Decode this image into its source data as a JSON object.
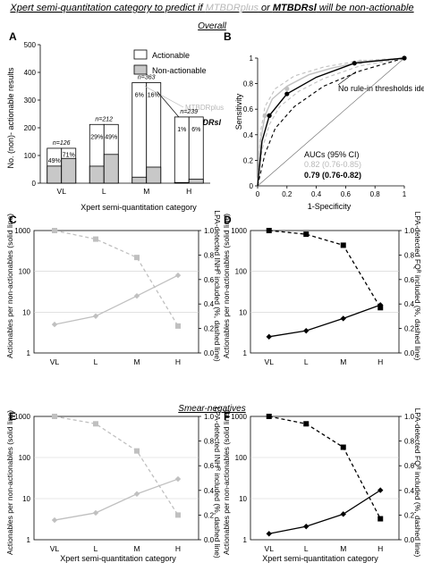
{
  "figure": {
    "title_parts": [
      "Xpert semi-quantitation category to predict if ",
      "MTBDRplus",
      " or ",
      "MTBDRsl",
      " will be non-actionable"
    ],
    "overall_label": "Overall",
    "smear_label": "Smear-negatives"
  },
  "colors": {
    "grey": "#c0c0c0",
    "black": "#000000",
    "bar_grey": "#c8c8c8"
  },
  "panelA": {
    "letter": "A",
    "ylabel": "No. (non)- actionable results",
    "xlabel": "Xpert semi-quantitation category",
    "legend": [
      "Actionable",
      "Non-actionable"
    ],
    "annot_plus": "MTBDRplus",
    "annot_sl": "MTBDRsl"
  },
  "panelB": {
    "letter": "B",
    "ylabel": "Sensitivity",
    "xlabel": "1-Specificity",
    "note": "No rule-in thresholds identified",
    "auc_title": "AUCs (95% CI)",
    "auc_plus": "0.82 (0.76-0.85)",
    "auc_sl": "0.79 (0.76-0.82)"
  },
  "panelC": {
    "letter": "C",
    "yleft": "Actionables per non-actionables (solid line)",
    "yright": "LPA-detected INHᴿ included (%, dashed line)"
  },
  "panelD": {
    "letter": "D",
    "yleft": "Actionables per non-actionables (solid line)",
    "yright": "LPA-detected FQᴿ included (%, dashed line)"
  },
  "panelE": {
    "letter": "E",
    "yleft": "Actionables per non-actionables (solid line)",
    "yright": "LPA-detected INHᴿ included (%, dashed line)",
    "xlabel": "Xpert semi-quantitation category"
  },
  "panelF": {
    "letter": "F",
    "yleft": "Actionables per non-actionables (solid line)",
    "yright": "LPA-detected FQᴿ included (%, dashed line)",
    "xlabel": "Xpert semi-quantitation category"
  },
  "chart_data": [
    {
      "type": "bar",
      "panel": "A",
      "categories": [
        "VL",
        "L",
        "M",
        "H"
      ],
      "n_labels": [
        "n=126",
        "n=212",
        "n=363",
        "n=239"
      ],
      "totals": [
        126,
        212,
        363,
        239
      ],
      "series": [
        {
          "name": "MTBDRplus",
          "nonactionable_pct": [
            49,
            29,
            6,
            1
          ],
          "labels": [
            "49%",
            "29%",
            "6%",
            "1%"
          ]
        },
        {
          "name": "MTBDRsl",
          "nonactionable_pct": [
            71,
            49,
            16,
            6
          ],
          "labels": [
            "71%",
            "49%",
            "16%",
            "6%"
          ]
        }
      ],
      "ylim": [
        0,
        500
      ],
      "yticks": [
        0,
        100,
        200,
        300,
        400,
        500
      ]
    },
    {
      "type": "line",
      "panel": "B",
      "xlabel": "1-Specificity",
      "ylabel": "Sensitivity",
      "xlim": [
        0,
        1
      ],
      "ylim": [
        0,
        1
      ],
      "xticks": [
        0,
        0.2,
        0.4,
        0.6,
        0.8,
        1
      ],
      "yticks": [
        0,
        0.2,
        0.4,
        0.6,
        0.8,
        1
      ],
      "xtick_labels": [
        "0",
        "0.2",
        "0.4",
        "0.6",
        "0.8",
        "1"
      ],
      "ytick_labels": [
        "0",
        "0.2",
        "0.4",
        "0.6",
        "0.8",
        "1"
      ],
      "series": [
        {
          "name": "MTBDRplus",
          "color": "grey",
          "style": "solid",
          "points": [
            [
              0,
              0
            ],
            [
              0.02,
              0.35
            ],
            [
              0.05,
              0.55
            ],
            [
              0.1,
              0.68
            ],
            [
              0.2,
              0.78
            ],
            [
              0.35,
              0.87
            ],
            [
              0.5,
              0.92
            ],
            [
              0.7,
              0.97
            ],
            [
              1,
              1
            ]
          ],
          "markers": [
            [
              0.05,
              0.55
            ],
            [
              0.2,
              0.76
            ],
            [
              0.7,
              0.97
            ],
            [
              1,
              1
            ]
          ]
        },
        {
          "name": "MTBDRplus CI",
          "color": "grey",
          "style": "dashed",
          "points": [
            [
              0,
              0
            ],
            [
              0.02,
              0.42
            ],
            [
              0.05,
              0.62
            ],
            [
              0.12,
              0.76
            ],
            [
              0.25,
              0.86
            ],
            [
              0.45,
              0.93
            ],
            [
              0.7,
              0.98
            ],
            [
              1,
              1
            ]
          ]
        },
        {
          "name": "MTBDRplus CI low",
          "color": "grey",
          "style": "dashed",
          "points": [
            [
              0,
              0
            ],
            [
              0.03,
              0.28
            ],
            [
              0.08,
              0.48
            ],
            [
              0.15,
              0.62
            ],
            [
              0.28,
              0.74
            ],
            [
              0.45,
              0.84
            ],
            [
              0.7,
              0.94
            ],
            [
              1,
              1
            ]
          ]
        },
        {
          "name": "MTBDRsl",
          "color": "black",
          "style": "solid",
          "points": [
            [
              0,
              0
            ],
            [
              0.03,
              0.35
            ],
            [
              0.08,
              0.55
            ],
            [
              0.2,
              0.72
            ],
            [
              0.4,
              0.85
            ],
            [
              0.66,
              0.96
            ],
            [
              1,
              1
            ]
          ],
          "markers": [
            [
              0.08,
              0.55
            ],
            [
              0.2,
              0.72
            ],
            [
              0.66,
              0.96
            ],
            [
              1,
              1
            ]
          ]
        },
        {
          "name": "MTBDRsl CI",
          "color": "black",
          "style": "dashed",
          "points": [
            [
              0,
              0
            ],
            [
              0.05,
              0.25
            ],
            [
              0.12,
              0.45
            ],
            [
              0.25,
              0.62
            ],
            [
              0.45,
              0.78
            ],
            [
              0.7,
              0.9
            ],
            [
              1,
              1
            ]
          ]
        }
      ]
    },
    {
      "type": "line",
      "panel": "C",
      "categories": [
        "VL",
        "L",
        "M",
        "H"
      ],
      "y_left": {
        "scale": "log",
        "lim": [
          1,
          1000
        ],
        "ticks": [
          1,
          10,
          100,
          1000
        ],
        "tick_labels": [
          "1",
          "10",
          "100",
          "1000"
        ]
      },
      "y_right": {
        "lim": [
          0,
          1
        ],
        "ticks": [
          0,
          0.2,
          0.4,
          0.6,
          0.8,
          1
        ],
        "tick_labels": [
          "0.0",
          "0.2",
          "0.4",
          "0.6",
          "0.8",
          "1.0"
        ]
      },
      "series": [
        {
          "name": "actionables per non-actionables",
          "axis": "left",
          "style": "solid",
          "color": "grey",
          "marker": "diamond",
          "values": [
            5,
            8,
            25,
            80
          ]
        },
        {
          "name": "LPA-detected included",
          "axis": "right",
          "style": "dashed",
          "color": "grey",
          "marker": "square",
          "values": [
            1.0,
            0.93,
            0.78,
            0.22
          ]
        }
      ]
    },
    {
      "type": "line",
      "panel": "D",
      "categories": [
        "VL",
        "L",
        "M",
        "H"
      ],
      "y_left": {
        "scale": "log",
        "lim": [
          1,
          1000
        ],
        "ticks": [
          1,
          10,
          100,
          1000
        ],
        "tick_labels": [
          "1",
          "10",
          "100",
          "1000"
        ]
      },
      "y_right": {
        "lim": [
          0,
          1
        ],
        "ticks": [
          0,
          0.2,
          0.4,
          0.6,
          0.8,
          1
        ],
        "tick_labels": [
          "0.0",
          "0.2",
          "0.4",
          "0.6",
          "0.8",
          "1.0"
        ]
      },
      "series": [
        {
          "name": "actionables per non-actionables",
          "axis": "left",
          "style": "solid",
          "color": "black",
          "marker": "diamond",
          "values": [
            2.5,
            3.5,
            7,
            15
          ]
        },
        {
          "name": "LPA-detected included",
          "axis": "right",
          "style": "dashed",
          "color": "black",
          "marker": "square",
          "values": [
            1.0,
            0.97,
            0.88,
            0.37
          ]
        }
      ]
    },
    {
      "type": "line",
      "panel": "E",
      "categories": [
        "VL",
        "L",
        "M",
        "H"
      ],
      "y_left": {
        "scale": "log",
        "lim": [
          1,
          1000
        ],
        "ticks": [
          1,
          10,
          100,
          1000
        ],
        "tick_labels": [
          "1",
          "10",
          "100",
          "1000"
        ]
      },
      "y_right": {
        "lim": [
          0,
          1
        ],
        "ticks": [
          0,
          0.2,
          0.4,
          0.6,
          0.8,
          1
        ],
        "tick_labels": [
          "0.0",
          "0.2",
          "0.4",
          "0.6",
          "0.8",
          "1.0"
        ]
      },
      "series": [
        {
          "name": "actionables per non-actionables",
          "axis": "left",
          "style": "solid",
          "color": "grey",
          "marker": "diamond",
          "values": [
            3,
            4.5,
            13,
            30
          ]
        },
        {
          "name": "LPA-detected included",
          "axis": "right",
          "style": "dashed",
          "color": "grey",
          "marker": "square",
          "values": [
            1.0,
            0.94,
            0.72,
            0.2
          ]
        }
      ]
    },
    {
      "type": "line",
      "panel": "F",
      "categories": [
        "VL",
        "L",
        "M",
        "H"
      ],
      "y_left": {
        "scale": "log",
        "lim": [
          1,
          1000
        ],
        "ticks": [
          1,
          10,
          100,
          1000
        ],
        "tick_labels": [
          "1",
          "10",
          "100",
          "1000"
        ]
      },
      "y_right": {
        "lim": [
          0,
          1
        ],
        "ticks": [
          0,
          0.2,
          0.4,
          0.6,
          0.8,
          1
        ],
        "tick_labels": [
          "0.0",
          "0.2",
          "0.4",
          "0.6",
          "0.8",
          "1.0"
        ]
      },
      "series": [
        {
          "name": "actionables per non-actionables",
          "axis": "left",
          "style": "solid",
          "color": "black",
          "marker": "diamond",
          "values": [
            1.4,
            2.1,
            4.2,
            16
          ]
        },
        {
          "name": "LPA-detected included",
          "axis": "right",
          "style": "dashed",
          "color": "black",
          "marker": "square",
          "values": [
            1.0,
            0.94,
            0.75,
            0.17
          ]
        }
      ]
    }
  ]
}
